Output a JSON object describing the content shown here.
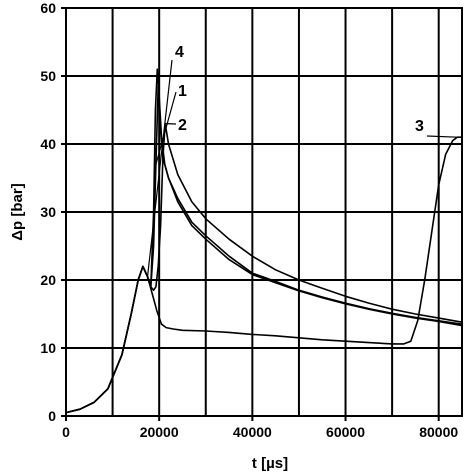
{
  "chart_data": {
    "type": "line",
    "xlabel": "t [µs]",
    "ylabel": "Δp [bar]",
    "xlim": [
      0,
      85000
    ],
    "ylim": [
      0,
      60
    ],
    "x_ticks": [
      0,
      20000,
      40000,
      60000,
      80000
    ],
    "y_ticks": [
      0,
      10,
      20,
      30,
      40,
      50,
      60
    ],
    "grid": true,
    "series": [
      {
        "name": "1",
        "x": [
          0,
          3000,
          6000,
          9000,
          12000,
          14000,
          15500,
          16500,
          17500,
          18200,
          18800,
          19300,
          19800,
          20300,
          20800,
          22000,
          24000,
          27000,
          30000,
          35000,
          40000,
          45000,
          50000,
          55000,
          60000,
          65000,
          70000,
          75000,
          80000,
          85000
        ],
        "y": [
          0.5,
          1.0,
          2.0,
          4.0,
          9.0,
          15.0,
          20.0,
          22.0,
          20.5,
          19.0,
          25.0,
          37.0,
          48.5,
          42.0,
          38.0,
          35.0,
          32.0,
          28.5,
          26.5,
          23.5,
          21.0,
          19.8,
          18.5,
          17.5,
          16.6,
          15.8,
          15.1,
          14.5,
          14.0,
          13.5
        ]
      },
      {
        "name": "2",
        "x": [
          0,
          3000,
          6000,
          9000,
          12000,
          14000,
          15500,
          16500,
          17500,
          18200,
          18800,
          19300,
          19800,
          20300,
          20800,
          21300,
          22000,
          24000,
          27000,
          30000,
          35000,
          40000,
          45000,
          50000,
          55000,
          60000,
          65000,
          70000,
          75000,
          80000,
          85000
        ],
        "y": [
          0.5,
          1.0,
          2.0,
          4.0,
          9.0,
          15.0,
          20.0,
          22.0,
          20.5,
          19.0,
          18.5,
          19.0,
          22.0,
          28.0,
          38.0,
          43.0,
          40.0,
          35.5,
          31.5,
          29.0,
          26.0,
          23.5,
          21.5,
          20.0,
          18.8,
          17.6,
          16.6,
          15.7,
          15.0,
          14.4,
          13.8
        ]
      },
      {
        "name": "3",
        "x": [
          0,
          3000,
          6000,
          9000,
          12000,
          14000,
          15500,
          16500,
          17500,
          18500,
          19500,
          20500,
          21500,
          23000,
          25000,
          30000,
          35000,
          40000,
          45000,
          50000,
          55000,
          60000,
          65000,
          70000,
          72500,
          74000,
          75500,
          77000,
          78500,
          80000,
          81500,
          83000,
          84000,
          85000
        ],
        "y": [
          0.5,
          1.0,
          2.0,
          4.0,
          9.0,
          15.0,
          20.0,
          22.0,
          20.5,
          18.0,
          15.5,
          13.5,
          13.0,
          12.8,
          12.6,
          12.5,
          12.3,
          12.0,
          11.8,
          11.5,
          11.2,
          11.0,
          10.8,
          10.6,
          10.6,
          11.0,
          14.0,
          20.0,
          27.0,
          34.0,
          38.5,
          40.5,
          41.0,
          41.0
        ]
      },
      {
        "name": "4",
        "x": [
          0,
          3000,
          6000,
          9000,
          12000,
          14000,
          15500,
          16500,
          17500,
          18200,
          18800,
          19200,
          19600,
          20000,
          20500,
          21200,
          22000,
          24000,
          27000,
          30000,
          35000,
          40000,
          45000,
          50000,
          55000,
          60000,
          65000,
          70000,
          75000,
          80000,
          85000
        ],
        "y": [
          0.5,
          1.0,
          2.0,
          4.0,
          9.0,
          15.0,
          20.0,
          22.0,
          20.5,
          19.0,
          30.0,
          45.0,
          51.0,
          47.0,
          41.0,
          37.0,
          35.0,
          31.5,
          28.0,
          26.0,
          23.0,
          20.8,
          19.6,
          18.4,
          17.4,
          16.5,
          15.7,
          15.0,
          14.4,
          13.9,
          13.3
        ]
      }
    ]
  }
}
